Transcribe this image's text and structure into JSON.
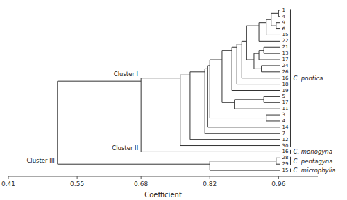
{
  "chart_data": {
    "type": "dendrogram",
    "xlabel": "Coefficient",
    "xlim": [
      0.41,
      1.04
    ],
    "xticks": [
      0.41,
      0.55,
      0.68,
      0.82,
      0.96
    ],
    "tree": {
      "value": 0.51,
      "children": [
        {
          "value": 0.68,
          "children": [
            {
              "value": 0.76,
              "cluster": "Cluster I",
              "species": "C. pontica",
              "children": [
                {
                  "value": 0.78,
                  "children": [
                    {
                      "value": 0.81,
                      "children": [
                        {
                          "value": 0.815,
                          "children": [
                            {
                              "value": 0.82,
                              "children": [
                                {
                                  "value": 0.845,
                                  "children": [
                                    {
                                      "value": 0.865,
                                      "children": [
                                        {
                                          "value": 0.875,
                                          "children": [
                                            {
                                              "value": 0.885,
                                              "children": [
                                                {
                                                  "value": 0.895,
                                                  "children": [
                                                    {
                                                      "value": 0.92,
                                                      "children": [
                                                        {
                                                          "value": 0.935,
                                                          "children": [
                                                            {
                                                              "value": 0.945,
                                                              "children": [
                                                                {
                                                                  "value": 0.96,
                                                                  "children": [
                                                                    {
                                                                      "label": "1",
                                                                      "value": 0.963
                                                                    },
                                                                    {
                                                                      "label": "4",
                                                                      "value": 0.963
                                                                    }
                                                                  ]
                                                                },
                                                                {
                                                                  "value": 0.955,
                                                                  "children": [
                                                                    {
                                                                      "label": "9",
                                                                      "value": 0.963
                                                                    },
                                                                    {
                                                                      "label": "6",
                                                                      "value": 0.963
                                                                    }
                                                                  ]
                                                                }
                                                              ]
                                                            },
                                                            {
                                                              "label": "15",
                                                              "value": 0.963
                                                            }
                                                          ]
                                                        },
                                                        {
                                                          "label": "22",
                                                          "value": 0.963
                                                        }
                                                      ]
                                                    },
                                                    {
                                                      "value": 0.91,
                                                      "children": [
                                                        {
                                                          "value": 0.92,
                                                          "children": [
                                                            {
                                                              "value": 0.93,
                                                              "children": [
                                                                {
                                                                  "label": "21",
                                                                  "value": 0.963
                                                                },
                                                                {
                                                                  "label": "13",
                                                                  "value": 0.963
                                                                }
                                                              ]
                                                            },
                                                            {
                                                              "label": "17",
                                                              "value": 0.963
                                                            }
                                                          ]
                                                        },
                                                        {
                                                          "value": 0.925,
                                                          "children": [
                                                            {
                                                              "label": "24",
                                                              "value": 0.963
                                                            },
                                                            {
                                                              "label": "26",
                                                              "value": 0.963
                                                            }
                                                          ]
                                                        }
                                                      ]
                                                    }
                                                  ]
                                                },
                                                {
                                                  "label": "16",
                                                  "value": 0.963
                                                }
                                              ]
                                            },
                                            {
                                              "label": "18",
                                              "value": 0.963
                                            }
                                          ]
                                        },
                                        {
                                          "label": "19",
                                          "value": 0.963
                                        }
                                      ]
                                    },
                                    {
                                      "value": 0.87,
                                      "children": [
                                        {
                                          "value": 0.93,
                                          "children": [
                                            {
                                              "label": "5",
                                              "value": 0.963
                                            },
                                            {
                                              "label": "17",
                                              "value": 0.963
                                            }
                                          ]
                                        },
                                        {
                                          "label": "11",
                                          "value": 0.963
                                        }
                                      ]
                                    }
                                  ]
                                },
                                {
                                  "value": 0.935,
                                  "children": [
                                    {
                                      "label": "3",
                                      "value": 0.963
                                    },
                                    {
                                      "label": "4",
                                      "value": 0.963
                                    }
                                  ]
                                }
                              ]
                            },
                            {
                              "label": "14",
                              "value": 0.963
                            }
                          ]
                        },
                        {
                          "label": "7",
                          "value": 0.963
                        }
                      ]
                    },
                    {
                      "label": "12",
                      "value": 0.963
                    }
                  ]
                },
                {
                  "label": "30",
                  "value": 0.963
                }
              ]
            },
            {
              "label": "16",
              "value": 0.963,
              "cluster": "Cluster II",
              "species": "C. monogyna"
            }
          ]
        },
        {
          "value": 0.82,
          "cluster": "Cluster III",
          "children": [
            {
              "value": 0.955,
              "species": "C. pentagyna",
              "children": [
                {
                  "label": "28",
                  "value": 0.963
                },
                {
                  "label": "29",
                  "value": 0.963
                }
              ]
            },
            {
              "label": "15",
              "value": 0.963,
              "species": "C. microphylia"
            }
          ]
        }
      ]
    }
  }
}
